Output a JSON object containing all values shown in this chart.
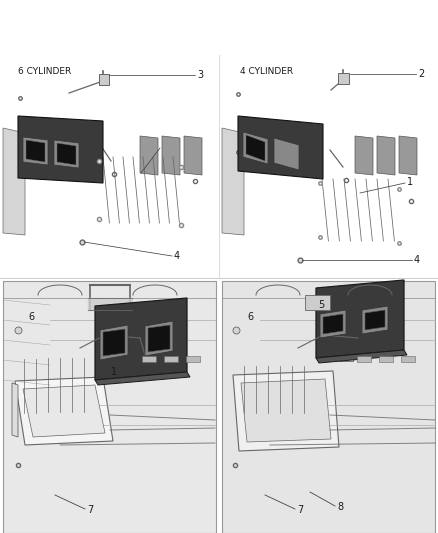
{
  "background_color": "#ffffff",
  "text_color": "#1a1a1a",
  "fig_width": 4.38,
  "fig_height": 5.33,
  "dpi": 100,
  "top_left_label": "6 CYLINDER",
  "top_right_label": "4 CYLINDER",
  "font_size_label": 6.5,
  "font_size_number": 7,
  "line_color": "#444444",
  "sketch_color": "#666666",
  "dark_color": "#111111",
  "mid_gray": "#888888",
  "light_gray": "#cccccc",
  "divider_color": "#cccccc"
}
